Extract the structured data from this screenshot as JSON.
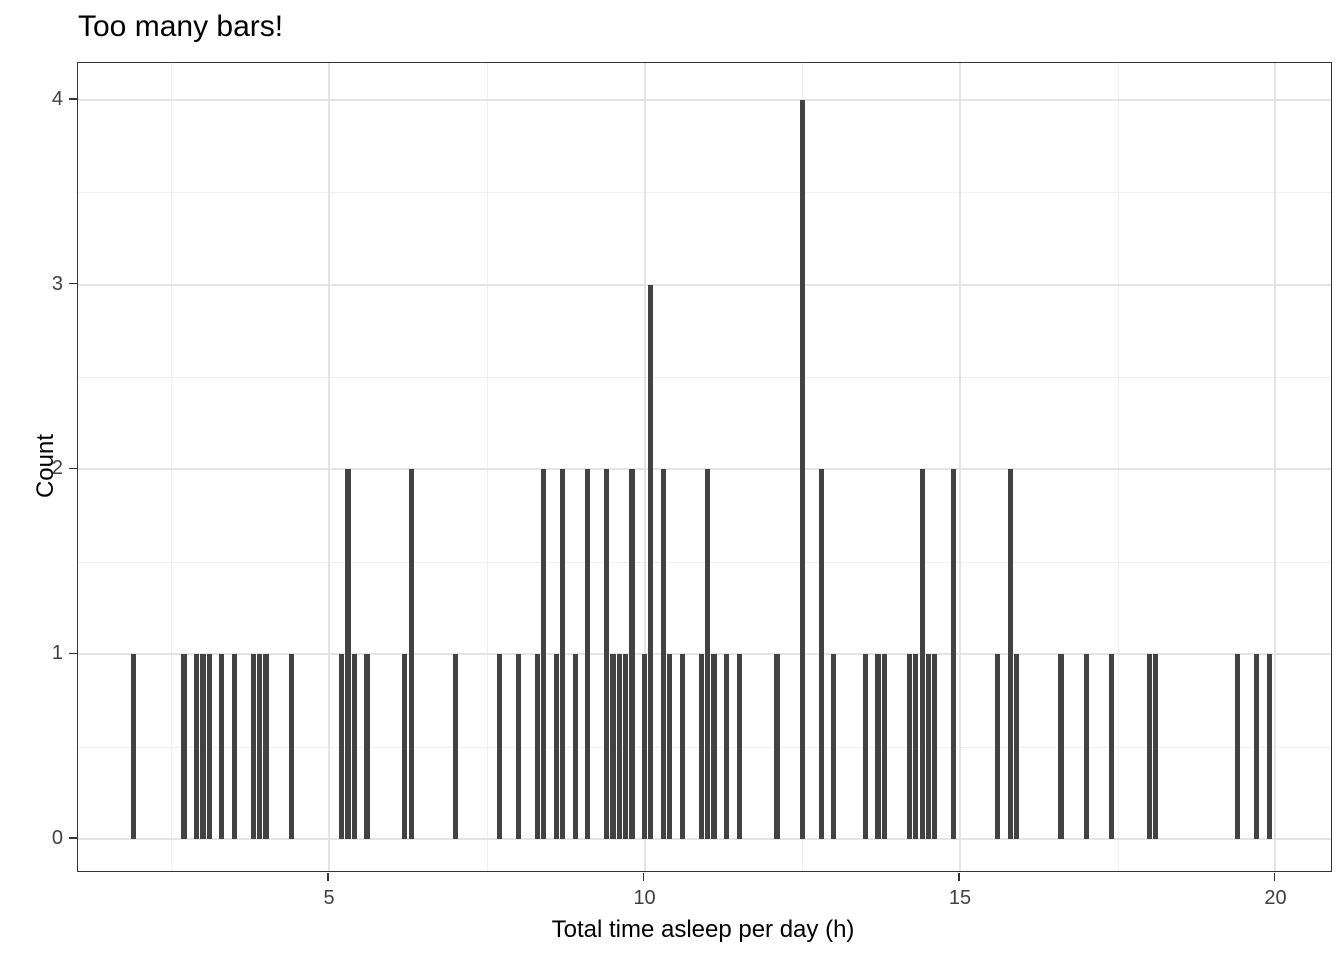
{
  "chart_data": {
    "type": "bar",
    "subtype": "histogram",
    "title": "Too many bars!",
    "xlabel": "Total time asleep per day (h)",
    "ylabel": "Count",
    "xlim": [
      1.02,
      20.88
    ],
    "ylim": [
      -0.173,
      4.2
    ],
    "x_major_ticks": [
      5,
      10,
      15,
      20
    ],
    "x_minor_gridlines": [
      2.5,
      7.5,
      12.5,
      17.5
    ],
    "y_major_ticks": [
      0,
      1,
      2,
      3,
      4
    ],
    "y_minor_gridlines": [
      0.5,
      1.5,
      2.5,
      3.5
    ],
    "grid": true,
    "legend": "none",
    "bar_width_hours": 0.082,
    "bars_format": "[hours, count]",
    "bars": [
      [
        1.9,
        1
      ],
      [
        2.7,
        1
      ],
      [
        2.9,
        1
      ],
      [
        3.0,
        1
      ],
      [
        3.1,
        1
      ],
      [
        3.3,
        1
      ],
      [
        3.5,
        1
      ],
      [
        3.8,
        1
      ],
      [
        3.9,
        1
      ],
      [
        4.0,
        1
      ],
      [
        4.4,
        1
      ],
      [
        5.2,
        1
      ],
      [
        5.3,
        2
      ],
      [
        5.4,
        1
      ],
      [
        5.6,
        1
      ],
      [
        6.2,
        1
      ],
      [
        6.3,
        2
      ],
      [
        7.0,
        1
      ],
      [
        7.7,
        1
      ],
      [
        8.0,
        1
      ],
      [
        8.3,
        1
      ],
      [
        8.4,
        2
      ],
      [
        8.6,
        1
      ],
      [
        8.7,
        2
      ],
      [
        8.9,
        1
      ],
      [
        9.1,
        2
      ],
      [
        9.4,
        2
      ],
      [
        9.5,
        1
      ],
      [
        9.6,
        1
      ],
      [
        9.7,
        1
      ],
      [
        9.8,
        2
      ],
      [
        10.0,
        1
      ],
      [
        10.1,
        3
      ],
      [
        10.3,
        2
      ],
      [
        10.4,
        1
      ],
      [
        10.6,
        1
      ],
      [
        10.9,
        1
      ],
      [
        11.0,
        2
      ],
      [
        11.1,
        1
      ],
      [
        11.3,
        1
      ],
      [
        11.5,
        1
      ],
      [
        12.1,
        1
      ],
      [
        12.5,
        4
      ],
      [
        12.8,
        2
      ],
      [
        13.0,
        1
      ],
      [
        13.5,
        1
      ],
      [
        13.7,
        1
      ],
      [
        13.8,
        1
      ],
      [
        14.2,
        1
      ],
      [
        14.3,
        1
      ],
      [
        14.4,
        2
      ],
      [
        14.5,
        1
      ],
      [
        14.6,
        1
      ],
      [
        14.9,
        2
      ],
      [
        15.6,
        1
      ],
      [
        15.8,
        2
      ],
      [
        15.9,
        1
      ],
      [
        16.6,
        1
      ],
      [
        17.0,
        1
      ],
      [
        17.4,
        1
      ],
      [
        18.0,
        1
      ],
      [
        18.1,
        1
      ],
      [
        19.4,
        1
      ],
      [
        19.7,
        1
      ],
      [
        19.9,
        1
      ]
    ]
  },
  "colors": {
    "bar": "#424242",
    "panel_border": "#333333",
    "grid_major": "#e4e4e4",
    "grid_minor": "#f0f0f0",
    "tick_label": "#404040",
    "text": "#000000",
    "background": "#ffffff"
  }
}
